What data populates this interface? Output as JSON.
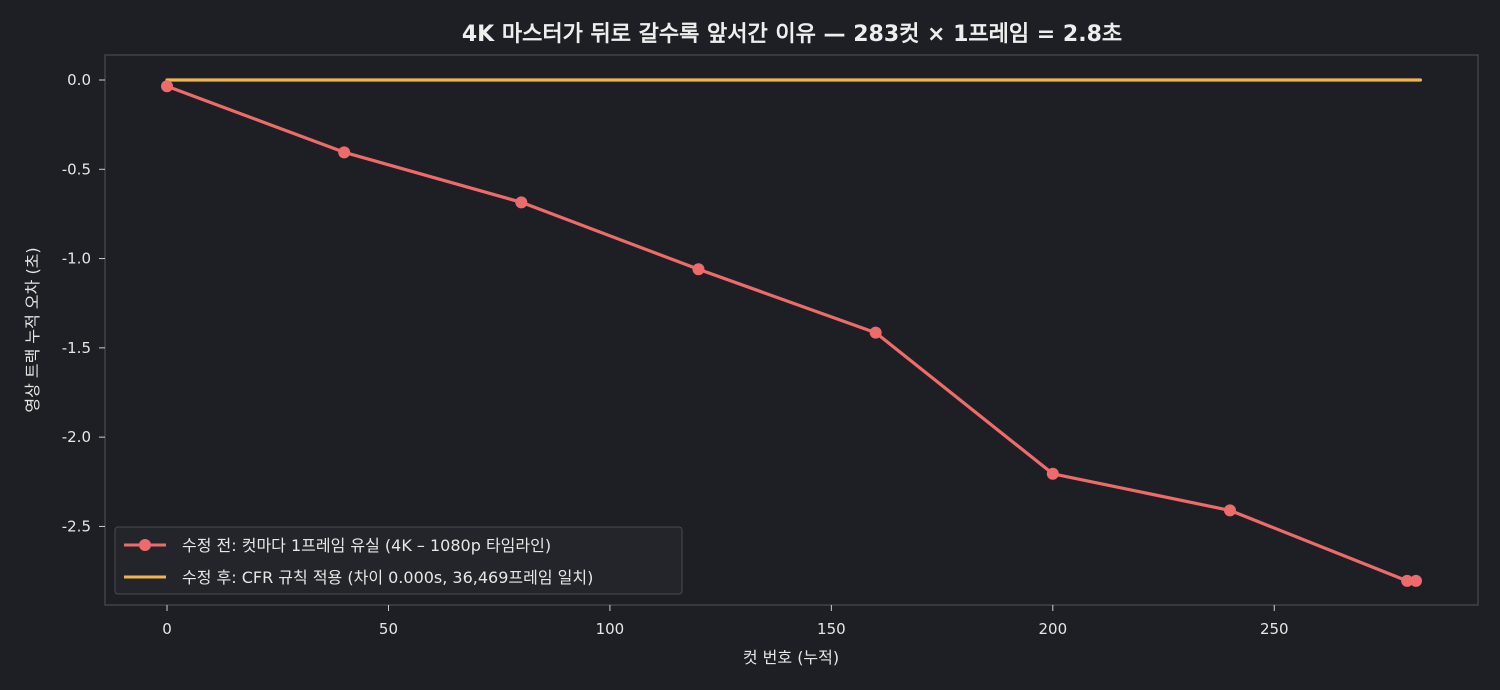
{
  "chart_data": {
    "type": "line",
    "title": "4K 마스터가 뒤로 갈수록 앞서간 이유 — 283컷 × 1프레임 = 2.8초",
    "xlabel": "컷 번호 (누적)",
    "ylabel": "영상 트랙 누적 오차 (초)",
    "xlim": [
      -14,
      296
    ],
    "ylim": [
      -2.94,
      0.14
    ],
    "xticks": [
      0,
      50,
      100,
      150,
      200,
      250
    ],
    "xtick_labels": [
      "0",
      "50",
      "100",
      "150",
      "200",
      "250"
    ],
    "yticks": [
      0.0,
      -0.5,
      -1.0,
      -1.5,
      -2.0,
      -2.5
    ],
    "ytick_labels": [
      "0.0",
      "-0.5",
      "-1.0",
      "-1.5",
      "-2.0",
      "-2.5"
    ],
    "grid": false,
    "legend_position": "lower-left",
    "series": [
      {
        "name": "수정 전: 컷마다 1프레임 유실 (4K – 1080p 타임라인)",
        "color": "#ee6b6b",
        "marker": "circle",
        "x": [
          0,
          40,
          80,
          120,
          160,
          200,
          240,
          280,
          282
        ],
        "y": [
          -0.035,
          -0.405,
          -0.685,
          -1.06,
          -1.415,
          -2.205,
          -2.41,
          -2.805,
          -2.805
        ]
      },
      {
        "name": "수정 후: CFR 규칙 적용 (차이 0.000s, 36,469프레임 일치)",
        "color": "#f0b64a",
        "marker": "none",
        "x": [
          0,
          283
        ],
        "y": [
          0,
          0
        ]
      }
    ]
  }
}
